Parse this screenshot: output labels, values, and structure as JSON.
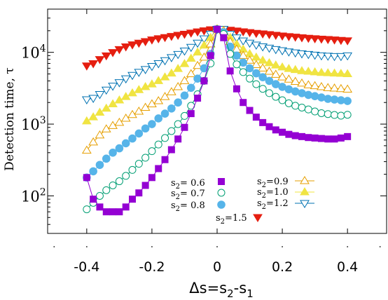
{
  "chart_data": {
    "type": "scatter",
    "x_scale": "linear",
    "y_scale": "log",
    "xlim": [
      -0.52,
      0.52
    ],
    "ylim": [
      30,
      40000
    ],
    "xlabel_parts": [
      "Δs=s",
      "2",
      "-s",
      "1"
    ],
    "ylabel": "Detection time,  τ",
    "x_ticks": [
      {
        "value": -0.4,
        "label": "-0.4"
      },
      {
        "value": -0.2,
        "label": "-0.2"
      },
      {
        "value": 0,
        "label": "0"
      },
      {
        "value": 0.2,
        "label": "0.2"
      },
      {
        "value": 0.4,
        "label": "0.4"
      }
    ],
    "y_ticks": [
      {
        "value": 100,
        "base": "10",
        "exp": "2"
      },
      {
        "value": 1000,
        "base": "10",
        "exp": "3"
      },
      {
        "value": 10000,
        "base": "10",
        "exp": "4"
      }
    ],
    "x": [
      -0.4,
      -0.38,
      -0.36,
      -0.34,
      -0.32,
      -0.3,
      -0.28,
      -0.26,
      -0.24,
      -0.22,
      -0.2,
      -0.18,
      -0.16,
      -0.14,
      -0.12,
      -0.1,
      -0.08,
      -0.06,
      -0.04,
      -0.02,
      0,
      0.02,
      0.04,
      0.06,
      0.08,
      0.1,
      0.12,
      0.14,
      0.16,
      0.18,
      0.2,
      0.22,
      0.24,
      0.26,
      0.28,
      0.3,
      0.32,
      0.34,
      0.36,
      0.38,
      0.4
    ],
    "series": [
      {
        "name": "s₂= 0.6",
        "color": "#9400d3",
        "marker": "square-filled",
        "values": [
          180,
          90,
          70,
          60,
          60,
          60,
          70,
          90,
          110,
          140,
          180,
          240,
          320,
          440,
          620,
          900,
          1400,
          2300,
          4000,
          9000,
          21000,
          16000,
          5500,
          3100,
          2000,
          1550,
          1250,
          1050,
          920,
          830,
          770,
          720,
          690,
          670,
          650,
          640,
          630,
          620,
          620,
          640,
          670
        ]
      },
      {
        "name": "s₂= 0.7",
        "color": "#009e73",
        "marker": "circle-open",
        "values": [
          65,
          80,
          100,
          120,
          140,
          160,
          190,
          230,
          280,
          340,
          420,
          520,
          640,
          800,
          1000,
          1300,
          1800,
          2600,
          4000,
          7000,
          21000,
          18000,
          9500,
          6800,
          5300,
          4300,
          3600,
          3100,
          2700,
          2400,
          2150,
          1950,
          1800,
          1700,
          1600,
          1500,
          1420,
          1380,
          1340,
          1310,
          1350
        ]
      },
      {
        "name": "s₂= 0.8",
        "color": "#56b4e9",
        "marker": "circle-filled",
        "values": [
          180,
          220,
          270,
          330,
          400,
          460,
          540,
          630,
          740,
          870,
          1000,
          1200,
          1400,
          1650,
          2000,
          2500,
          3200,
          4300,
          6000,
          9500,
          21000,
          19000,
          12000,
          9000,
          7200,
          6000,
          5100,
          4500,
          4000,
          3600,
          3300,
          3050,
          2850,
          2700,
          2550,
          2450,
          2350,
          2250,
          2200,
          2150,
          2100
        ]
      },
      {
        "name": "s₂=0.9",
        "color": "#e69f00",
        "marker": "triangle-up-open",
        "values": [
          430,
          560,
          700,
          850,
          950,
          1050,
          1200,
          1350,
          1500,
          1700,
          1900,
          2100,
          2400,
          2800,
          3300,
          4000,
          5000,
          6500,
          8500,
          13000,
          21000,
          20000,
          14000,
          11000,
          9000,
          7700,
          6700,
          6000,
          5400,
          4900,
          4500,
          4200,
          3900,
          3700,
          3500,
          3400,
          3300,
          3200,
          3150,
          3100,
          3050
        ]
      },
      {
        "name": "s₂=1.0",
        "color": "#f0e442",
        "marker": "triangle-up-filled",
        "values": [
          1100,
          1250,
          1450,
          1650,
          1900,
          2150,
          2400,
          2700,
          3000,
          3300,
          3600,
          4000,
          4500,
          5100,
          5900,
          6900,
          8200,
          10000,
          12500,
          16000,
          21000,
          20000,
          16000,
          13000,
          11000,
          9500,
          8500,
          7700,
          7100,
          6600,
          6200,
          5900,
          5700,
          5500,
          5400,
          5300,
          5200,
          5150,
          5100,
          5050,
          5000
        ]
      },
      {
        "name": "s₂=1.2",
        "color": "#0072b2",
        "marker": "triangle-down-open",
        "values": [
          2200,
          2300,
          2600,
          3000,
          3400,
          3800,
          4300,
          4800,
          5300,
          5800,
          6400,
          7000,
          7700,
          8500,
          9400,
          10500,
          11800,
          13500,
          15500,
          18000,
          21000,
          21000,
          18000,
          16000,
          14500,
          13500,
          12700,
          12000,
          11500,
          11000,
          10600,
          10200,
          9900,
          9600,
          9400,
          9200,
          9000,
          8900,
          8800,
          8800,
          9000
        ]
      },
      {
        "name": "s₂=1.5",
        "color": "#e51e10",
        "marker": "triangle-down-filled",
        "values": [
          6500,
          7000,
          8000,
          9000,
          10000,
          11000,
          12000,
          12800,
          13500,
          14200,
          15000,
          15600,
          16200,
          16800,
          17400,
          18000,
          18700,
          19400,
          20100,
          20800,
          21000,
          21000,
          20500,
          20000,
          19500,
          19000,
          18500,
          18200,
          17800,
          17400,
          17000,
          16700,
          16400,
          16100,
          15800,
          15600,
          15400,
          15200,
          15000,
          14800,
          14600
        ]
      }
    ],
    "legend": {
      "placement": "lower-center",
      "entries": [
        {
          "base": "s",
          "sub": "2",
          "rest": "= 0.6"
        },
        {
          "base": "s",
          "sub": "2",
          "rest": "= 0.7"
        },
        {
          "base": "s",
          "sub": "2",
          "rest": "= 0.8"
        },
        {
          "base": "s",
          "sub": "2",
          "rest": "=0.9"
        },
        {
          "base": "s",
          "sub": "2",
          "rest": "=1.0"
        },
        {
          "base": "s",
          "sub": "2",
          "rest": "=1.2"
        },
        {
          "base": "s",
          "sub": "2",
          "rest": "=1.5"
        }
      ]
    },
    "grid": false
  }
}
